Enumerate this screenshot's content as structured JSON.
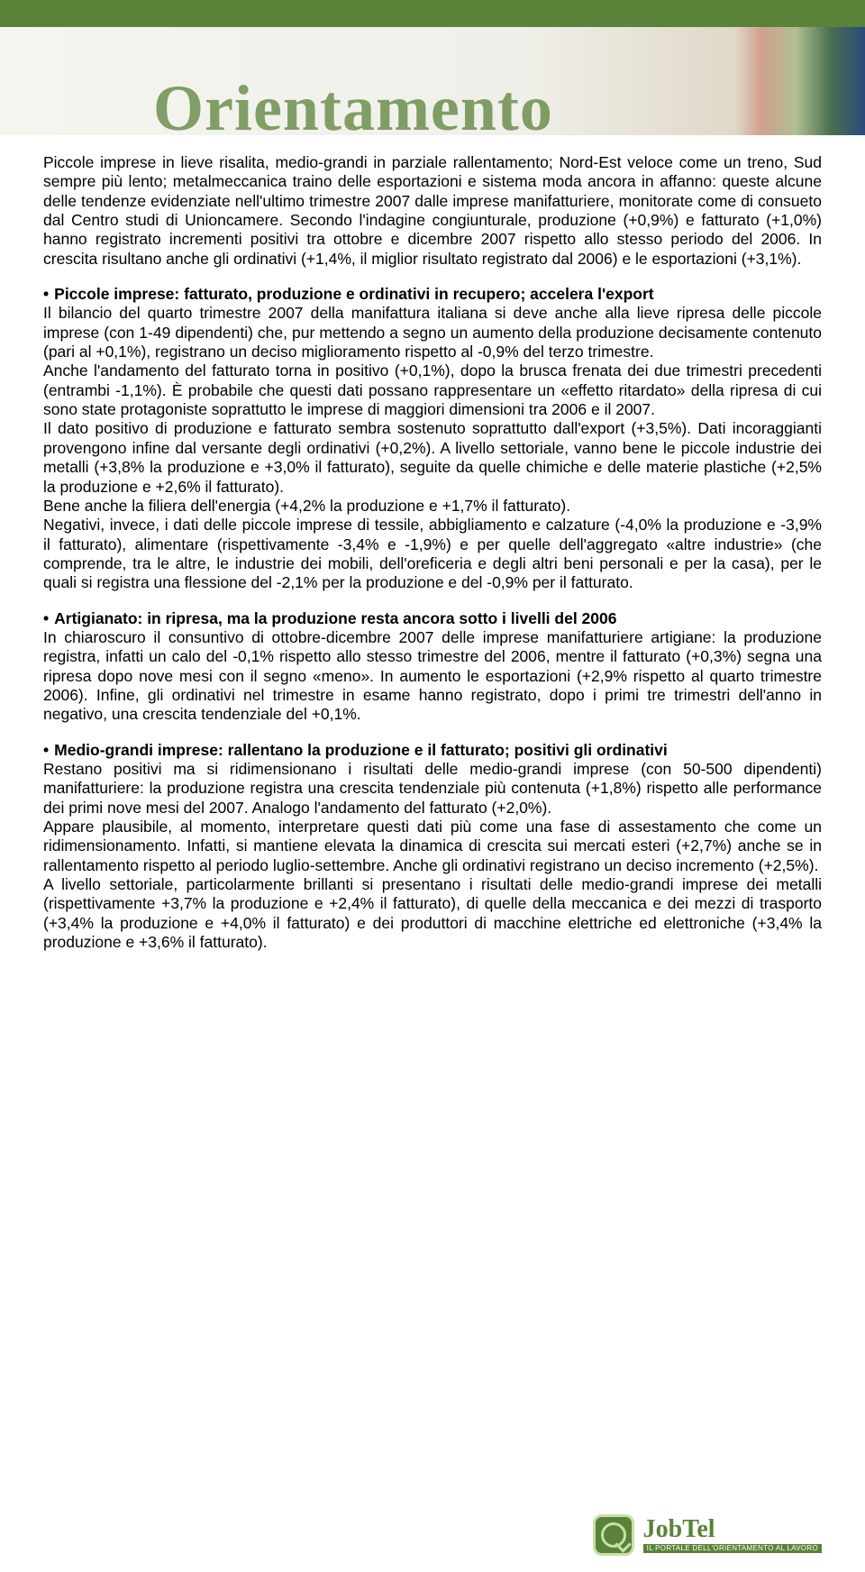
{
  "header": {
    "title": "Orientamento",
    "title_color": "#5a8238",
    "title_fontsize": 72,
    "stripe_color": "#5a8238",
    "band_gradient": [
      "#f5f5f0",
      "#d0a090",
      "#4a7050",
      "#2a4a7a"
    ]
  },
  "body": {
    "text_color": "#000000",
    "fontsize": 17.5,
    "line_height": 1.22,
    "align": "justify",
    "intro": "Piccole imprese in lieve risalita, medio-grandi in parziale rallentamento; Nord-Est veloce come un treno, Sud sempre più lento; metalmeccanica traino delle esportazioni e sistema moda ancora in affanno: queste alcune delle tendenze evidenziate nell'ultimo trimestre 2007 dalle imprese manifatturiere, monitorate come di consueto dal Centro studi di Unioncamere. Secondo l'indagine congiunturale, produzione (+0,9%) e fatturato (+1,0%) hanno registrato incrementi positivi tra ottobre e dicembre 2007 rispetto allo stesso periodo del 2006. In crescita risultano anche gli ordinativi (+1,4%, il miglior risultato registrato dal 2006) e le esportazioni (+3,1%).",
    "sections": [
      {
        "heading": "Piccole imprese: fatturato, produzione e ordinativi in recupero; accelera l'export",
        "paragraphs": [
          "Il bilancio del quarto trimestre 2007 della manifattura italiana si deve anche alla lieve ripresa delle piccole imprese (con 1-49 dipendenti) che, pur mettendo a segno un aumento della produzione decisamente contenuto (pari al +0,1%), registrano un deciso miglioramento rispetto al -0,9% del terzo trimestre.",
          "Anche l'andamento del fatturato torna in positivo (+0,1%), dopo la brusca frenata dei due trimestri precedenti (entrambi -1,1%). È probabile che questi dati possano rappresentare un «effetto ritardato» della ripresa di cui sono state protagoniste soprattutto le imprese di maggiori dimensioni tra 2006 e il 2007.",
          "Il dato positivo di produzione e fatturato sembra sostenuto soprattutto dall'export (+3,5%). Dati incoraggianti provengono infine dal versante degli ordinativi (+0,2%). A livello settoriale, vanno bene le piccole industrie dei metalli (+3,8% la produzione e +3,0% il fatturato), seguite da quelle chimiche e delle materie plastiche (+2,5% la produzione e +2,6% il fatturato).",
          "Bene anche la filiera dell'energia (+4,2% la produzione e +1,7% il fatturato).",
          "Negativi, invece, i dati delle piccole imprese di tessile, abbigliamento e calzature (-4,0% la produzione e -3,9% il fatturato), alimentare (rispettivamente -3,4% e -1,9%) e per quelle dell'aggregato «altre industrie» (che comprende, tra le altre, le industrie dei mobili, dell'oreficeria e degli altri beni personali e per la casa), per le quali si registra una flessione del -2,1% per la produzione e del -0,9% per il fatturato."
        ]
      },
      {
        "heading": "Artigianato: in ripresa, ma la produzione resta ancora sotto i livelli del 2006",
        "paragraphs": [
          "In chiaroscuro il consuntivo di ottobre-dicembre 2007 delle imprese manifatturiere artigiane: la produzione registra, infatti un calo del -0,1% rispetto allo stesso trimestre del 2006, mentre il fatturato (+0,3%) segna una ripresa dopo nove mesi con il segno «meno». In aumento le esportazioni (+2,9% rispetto al quarto trimestre 2006). Infine, gli ordinativi nel trimestre in esame hanno registrato, dopo i primi tre trimestri dell'anno in negativo, una crescita tendenziale del +0,1%."
        ]
      },
      {
        "heading": "Medio-grandi imprese: rallentano la produzione e il fatturato; positivi gli ordinativi",
        "paragraphs": [
          "Restano positivi ma si ridimensionano i risultati delle medio-grandi imprese (con 50-500 dipendenti) manifatturiere: la produzione registra una crescita tendenziale più contenuta (+1,8%) rispetto alle performance dei primi nove mesi del 2007. Analogo l'andamento del fatturato (+2,0%).",
          "Appare plausibile, al momento, interpretare questi dati più come una fase di assestamento che come un ridimensionamento. Infatti, si mantiene elevata la dinamica di crescita sui mercati esteri (+2,7%) anche se in rallentamento rispetto al periodo luglio-settembre. Anche gli ordinativi registrano un deciso incremento (+2,5%).",
          "A livello settoriale, particolarmente brillanti si presentano i risultati delle medio-grandi imprese dei metalli (rispettivamente +3,7% la produzione e +2,4% il fatturato), di quelle della meccanica e dei mezzi di trasporto (+3,4% la produzione e +4,0% il fatturato) e dei produttori di macchine elettriche ed elettroniche (+3,4% la produzione e +3,6% il fatturato)."
        ]
      }
    ]
  },
  "footer": {
    "brand": "JobTel",
    "tagline": "IL PORTALE DELL'ORIENTAMENTO AL LAVORO",
    "brand_color": "#5a8238",
    "logo_bg": "#5a8238",
    "logo_border": "#c8e0a8"
  }
}
